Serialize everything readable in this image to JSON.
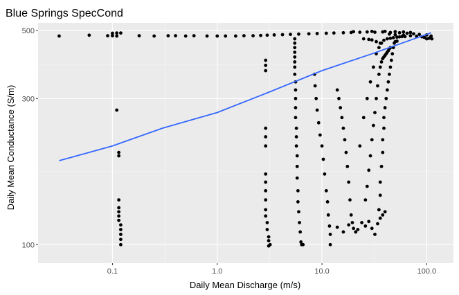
{
  "chart_data": {
    "type": "scatter",
    "title": "Blue Springs SpecCond",
    "xlabel": "Daily Mean Discharge (m/s)",
    "ylabel": "Daily Mean Conductance (S/m)",
    "x_scale": "log10",
    "y_scale": "log10",
    "xlim": [
      0.0195,
      180
    ],
    "ylim": [
      87,
      530
    ],
    "x_ticks": [
      0.1,
      1.0,
      10.0,
      100.0
    ],
    "x_tick_labels": [
      "0.1",
      "1.0",
      "10.0",
      "100.0"
    ],
    "y_ticks": [
      100,
      300,
      500
    ],
    "y_tick_labels": [
      "100",
      "300",
      "500"
    ],
    "grid": true,
    "legend": "none",
    "colors": {
      "panel_background": "#ebebeb",
      "grid_major": "#ffffff",
      "grid_minor": "#f5f5f5",
      "points": "#000000",
      "trend_line": "#3366ff"
    },
    "series": [
      {
        "type": "scatter",
        "points": [
          [
            0.031,
            480
          ],
          [
            0.06,
            483
          ],
          [
            0.09,
            481
          ],
          [
            0.1,
            481
          ],
          [
            0.1,
            490
          ],
          [
            0.11,
            491
          ],
          [
            0.12,
            491
          ],
          [
            0.11,
            480
          ],
          [
            0.18,
            481
          ],
          [
            0.25,
            480
          ],
          [
            0.34,
            481
          ],
          [
            0.4,
            481
          ],
          [
            0.5,
            480
          ],
          [
            0.6,
            481
          ],
          [
            0.8,
            480
          ],
          [
            1.0,
            480
          ],
          [
            1.2,
            480
          ],
          [
            1.5,
            480
          ],
          [
            1.8,
            481
          ],
          [
            2.2,
            481
          ],
          [
            2.6,
            482
          ],
          [
            3.0,
            483
          ],
          [
            3.5,
            484
          ],
          [
            4.2,
            485
          ],
          [
            5.0,
            486
          ],
          [
            6.0,
            487
          ],
          [
            7.5,
            488
          ],
          [
            9.0,
            489
          ],
          [
            11,
            490
          ],
          [
            13,
            491
          ],
          [
            16,
            492
          ],
          [
            19,
            493
          ],
          [
            23,
            494
          ],
          [
            27,
            495
          ],
          [
            32,
            494
          ],
          [
            38,
            495
          ],
          [
            45,
            493
          ],
          [
            55,
            492
          ],
          [
            65,
            490
          ],
          [
            75,
            488
          ],
          [
            85,
            486
          ],
          [
            100,
            484
          ],
          [
            110,
            480
          ],
          [
            112,
            470
          ],
          [
            20,
            496
          ],
          [
            30,
            497
          ],
          [
            40,
            497
          ],
          [
            50,
            496
          ],
          [
            60,
            495
          ],
          [
            70,
            493
          ],
          [
            0.11,
            275
          ],
          [
            0.115,
            200
          ],
          [
            0.115,
            195
          ],
          [
            0.115,
            140
          ],
          [
            0.115,
            132
          ],
          [
            0.115,
            128
          ],
          [
            0.115,
            124
          ],
          [
            0.115,
            120
          ],
          [
            0.12,
            116
          ],
          [
            0.12,
            112
          ],
          [
            0.12,
            108
          ],
          [
            0.12,
            104
          ],
          [
            0.12,
            100
          ],
          [
            2.9,
            400
          ],
          [
            2.9,
            385
          ],
          [
            2.9,
            370
          ],
          [
            2.9,
            240
          ],
          [
            2.9,
            225
          ],
          [
            2.9,
            210
          ],
          [
            2.9,
            170
          ],
          [
            2.9,
            160
          ],
          [
            2.9,
            150
          ],
          [
            2.9,
            140
          ],
          [
            2.9,
            130
          ],
          [
            2.9,
            124
          ],
          [
            3.0,
            118
          ],
          [
            3.0,
            112
          ],
          [
            3.1,
            106
          ],
          [
            3.1,
            103
          ],
          [
            3.2,
            100
          ],
          [
            3.1,
            99
          ],
          [
            5.5,
            470
          ],
          [
            5.5,
            455
          ],
          [
            5.5,
            440
          ],
          [
            5.5,
            425
          ],
          [
            5.5,
            410
          ],
          [
            5.5,
            395
          ],
          [
            5.5,
            380
          ],
          [
            5.5,
            360
          ],
          [
            5.6,
            340
          ],
          [
            5.6,
            320
          ],
          [
            5.6,
            300
          ],
          [
            5.6,
            280
          ],
          [
            5.6,
            260
          ],
          [
            5.7,
            240
          ],
          [
            5.7,
            225
          ],
          [
            5.7,
            210
          ],
          [
            5.8,
            195
          ],
          [
            5.8,
            180
          ],
          [
            5.8,
            165
          ],
          [
            5.9,
            150
          ],
          [
            5.9,
            138
          ],
          [
            6.0,
            128
          ],
          [
            6.1,
            118
          ],
          [
            6.2,
            110
          ],
          [
            6.3,
            102
          ],
          [
            6.4,
            100
          ],
          [
            6.6,
            100
          ],
          [
            8.5,
            360
          ],
          [
            8.6,
            330
          ],
          [
            8.8,
            300
          ],
          [
            9.0,
            275
          ],
          [
            9.3,
            250
          ],
          [
            9.6,
            228
          ],
          [
            10.0,
            210
          ],
          [
            10.3,
            190
          ],
          [
            10.6,
            170
          ],
          [
            11.0,
            150
          ],
          [
            11.3,
            138
          ],
          [
            11.5,
            125
          ],
          [
            11.8,
            115
          ],
          [
            12,
            108
          ],
          [
            12,
            100
          ],
          [
            14,
            320
          ],
          [
            14.5,
            300
          ],
          [
            15,
            280
          ],
          [
            15.5,
            260
          ],
          [
            16,
            240
          ],
          [
            16.5,
            220
          ],
          [
            17,
            200
          ],
          [
            17.5,
            180
          ],
          [
            18,
            160
          ],
          [
            18.5,
            140
          ],
          [
            19,
            125
          ],
          [
            19.5,
            118
          ],
          [
            20,
            113
          ],
          [
            21,
            110
          ],
          [
            22,
            112
          ],
          [
            14,
            114
          ],
          [
            16,
            110
          ],
          [
            18,
            116
          ],
          [
            24,
            118
          ],
          [
            26,
            115
          ],
          [
            28,
            119
          ],
          [
            30,
            113
          ],
          [
            32,
            108
          ],
          [
            34,
            117
          ],
          [
            36,
            122
          ],
          [
            38,
            125
          ],
          [
            40,
            128
          ],
          [
            23,
            210
          ],
          [
            25,
            260
          ],
          [
            27,
            300
          ],
          [
            29,
            340
          ],
          [
            31,
            380
          ],
          [
            33,
            420
          ],
          [
            35,
            440
          ],
          [
            37,
            455
          ],
          [
            39,
            465
          ],
          [
            42,
            470
          ],
          [
            45,
            472
          ],
          [
            48,
            474
          ],
          [
            52,
            476
          ],
          [
            55,
            477
          ],
          [
            58,
            478
          ],
          [
            62,
            478
          ],
          [
            26,
            140
          ],
          [
            27,
            155
          ],
          [
            28,
            175
          ],
          [
            29,
            195
          ],
          [
            30,
            220
          ],
          [
            31,
            245
          ],
          [
            32,
            270
          ],
          [
            33,
            300
          ],
          [
            34,
            330
          ],
          [
            35,
            360
          ],
          [
            36,
            380
          ],
          [
            37,
            395
          ],
          [
            38,
            405
          ],
          [
            39,
            410
          ],
          [
            40,
            415
          ],
          [
            41,
            420
          ],
          [
            42,
            425
          ],
          [
            43,
            430
          ],
          [
            44,
            436
          ],
          [
            45,
            440
          ],
          [
            35,
            130
          ],
          [
            36,
            145
          ],
          [
            36,
            160
          ],
          [
            37,
            180
          ],
          [
            38,
            200
          ],
          [
            38,
            220
          ],
          [
            39,
            240
          ],
          [
            39,
            260
          ],
          [
            40,
            280
          ],
          [
            41,
            300
          ],
          [
            42,
            320
          ],
          [
            43,
            340
          ],
          [
            44,
            360
          ],
          [
            45,
            380
          ],
          [
            46,
            400
          ],
          [
            47,
            420
          ],
          [
            48,
            440
          ],
          [
            49,
            455
          ],
          [
            50,
            460
          ],
          [
            52,
            462
          ],
          [
            25,
            470
          ],
          [
            28,
            468
          ],
          [
            30,
            466
          ],
          [
            33,
            460
          ],
          [
            36,
            455
          ],
          [
            100,
            470
          ],
          [
            105,
            472
          ],
          [
            108,
            474
          ],
          [
            95,
            475
          ],
          [
            90,
            477
          ],
          [
            80,
            479
          ],
          [
            70,
            481
          ],
          [
            60,
            483
          ],
          [
            50,
            485
          ],
          [
            44,
            487
          ]
        ]
      },
      {
        "type": "line",
        "x": [
          0.031,
          0.1,
          0.3,
          1.0,
          3.0,
          10.0,
          30.0,
          110.0
        ],
        "y": [
          188,
          210,
          240,
          270,
          313,
          370,
          420,
          492
        ]
      }
    ]
  }
}
